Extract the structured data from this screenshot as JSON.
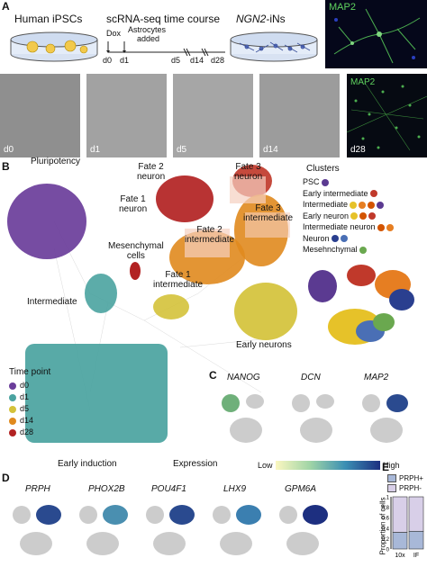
{
  "panelA": {
    "letter": "A",
    "hipsc_label": "Human iPSCs",
    "timecourse_label": "scRNA-seq time course",
    "ngn2_label": "NGN2",
    "ngn2_suffix": "-iNs",
    "dox_label": "Dox",
    "astro_label_1": "Astrocytes",
    "astro_label_2": "added",
    "days": [
      "d0",
      "d1",
      "d5",
      "d14",
      "d28"
    ],
    "map2_label": "MAP2",
    "micro_labels": [
      "d0",
      "d1",
      "d5",
      "d14",
      "d28"
    ],
    "micro_map2": "MAP2"
  },
  "panelB": {
    "letter": "B",
    "labels": {
      "pluripotency": "Pluripotency",
      "fate2neuron": "Fate 2\nneuron",
      "fate3neuron": "Fate 3\nneuron",
      "fate1neuron": "Fate 1\nneuron",
      "fate2inter": "Fate 2\nintermediate",
      "fate3inter": "Fate 3\nintermediate",
      "mesenchymal": "Mesenchymal\ncells",
      "fate1inter": "Fate 1\nintermediate",
      "intermediate": "Intermediate",
      "early_neurons": "Early neurons",
      "early_induction": "Early induction"
    },
    "clusters_title": "Clusters",
    "clusters": [
      {
        "name": "PSC",
        "colors": [
          "#5b3a91"
        ]
      },
      {
        "name": "Early intermediate",
        "colors": [
          "#c0392b"
        ]
      },
      {
        "name": "Intermediate",
        "colors": [
          "#e6c229",
          "#e67e22",
          "#d35400",
          "#5b3a91"
        ]
      },
      {
        "name": "Early neuron",
        "colors": [
          "#e6c229",
          "#d35400",
          "#c0392b"
        ]
      },
      {
        "name": "Intermediate neuron",
        "colors": [
          "#d35400",
          "#e67e22"
        ]
      },
      {
        "name": "Neuron",
        "colors": [
          "#2a3f8f",
          "#4a6fb5"
        ]
      },
      {
        "name": "Mesehnchymal",
        "colors": [
          "#6aa84f"
        ]
      }
    ],
    "timepoint_title": "Time point",
    "timepoints": [
      {
        "name": "d0",
        "color": "#6a3d9a"
      },
      {
        "name": "d1",
        "color": "#4aa3a0"
      },
      {
        "name": "d5",
        "color": "#d4c23a"
      },
      {
        "name": "d14",
        "color": "#e08a1e"
      },
      {
        "name": "d28",
        "color": "#b22222"
      }
    ]
  },
  "panelC": {
    "letter": "C",
    "genes": [
      "NANOG",
      "DCN",
      "MAP2"
    ]
  },
  "expression": {
    "label": "Expression",
    "low": "Low",
    "high": "High"
  },
  "panelD": {
    "letter": "D",
    "genes": [
      "PRPH",
      "PHOX2B",
      "POU4F1",
      "LHX9",
      "GPM6A"
    ]
  },
  "panelE": {
    "letter": "E",
    "legend": [
      {
        "name": "PRPH+",
        "color": "#a8b8d8"
      },
      {
        "name": "PRPH-",
        "color": "#d8cfe8"
      }
    ],
    "ylabel": "Proportion of cells",
    "yticks": [
      "0",
      "0.2",
      "0.4",
      "0.6",
      "0.8",
      "1"
    ],
    "categories": [
      "10x",
      "IF"
    ]
  },
  "chart_data": {
    "type": "bar",
    "categories": [
      "10x",
      "IF"
    ],
    "series": [
      {
        "name": "PRPH+",
        "values": [
          0.32,
          0.34
        ]
      },
      {
        "name": "PRPH-",
        "values": [
          0.68,
          0.66
        ]
      }
    ],
    "ylabel": "Proportion of cells",
    "ylim": [
      0,
      1
    ]
  }
}
